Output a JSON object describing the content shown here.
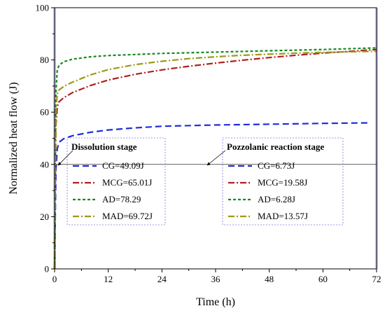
{
  "chart_data": {
    "type": "line",
    "xlabel": "Time (h)",
    "ylabel": "Normalized heat flow (J)",
    "xlim": [
      0,
      72
    ],
    "ylim": [
      0,
      100
    ],
    "xticks": [
      0,
      12,
      24,
      36,
      48,
      60,
      72
    ],
    "yticks": [
      0,
      20,
      40,
      60,
      80,
      100
    ],
    "grid": false,
    "reference_line": {
      "y": 40
    },
    "shaded_bands": [
      {
        "x_from": -0.3,
        "x_to": 0.3,
        "color": "#c8c8ff"
      },
      {
        "x_from": 71.7,
        "x_to": 72.3,
        "color": "#c8c8ff"
      }
    ],
    "series": [
      {
        "name": "CG",
        "color": "#1f2bdc",
        "dash": "long-dash",
        "x": [
          0,
          0.15,
          0.3,
          0.6,
          1,
          2,
          4,
          8,
          12,
          18,
          24,
          36,
          48,
          60,
          70
        ],
        "y": [
          0,
          20,
          38,
          46,
          48.5,
          49.8,
          51,
          52.3,
          53.2,
          54,
          54.6,
          55.1,
          55.4,
          55.7,
          55.9
        ]
      },
      {
        "name": "MCG",
        "color": "#b01f1f",
        "dash": "dash-dot",
        "x": [
          0,
          0.15,
          0.3,
          0.6,
          1,
          2,
          4,
          8,
          12,
          18,
          24,
          30,
          36,
          42,
          48,
          54,
          60,
          66,
          72
        ],
        "y": [
          0,
          30,
          55,
          62,
          64,
          65.5,
          67.5,
          70.2,
          72.3,
          74.5,
          76.2,
          77.6,
          78.8,
          79.9,
          80.9,
          81.8,
          82.6,
          83.3,
          84
        ]
      },
      {
        "name": "AD",
        "color": "#178a1f",
        "dash": "short-dash",
        "x": [
          0,
          0.15,
          0.3,
          0.6,
          1,
          2,
          4,
          8,
          12,
          18,
          24,
          36,
          48,
          60,
          72
        ],
        "y": [
          0,
          40,
          68,
          76,
          78,
          79.3,
          80.3,
          81.2,
          81.7,
          82.1,
          82.5,
          83,
          83.5,
          84,
          84.6
        ]
      },
      {
        "name": "MAD",
        "color": "#9a9a1a",
        "dash": "dash-dot",
        "x": [
          0,
          0.15,
          0.3,
          0.6,
          1,
          2,
          4,
          8,
          12,
          18,
          24,
          30,
          36,
          42,
          48,
          54,
          60,
          66,
          72
        ],
        "y": [
          0,
          35,
          60,
          67,
          68.5,
          69.8,
          71.5,
          74.3,
          76.3,
          78.2,
          79.5,
          80.5,
          81.2,
          81.8,
          82.2,
          82.6,
          82.9,
          83.1,
          83.3
        ]
      }
    ],
    "legends": [
      {
        "title": "Dissolution stage",
        "entries": [
          {
            "series": "CG",
            "label": "CG=49.09J"
          },
          {
            "series": "MCG",
            "label": "MCG=65.01J"
          },
          {
            "series": "AD",
            "label": "AD=78.29"
          },
          {
            "series": "MAD",
            "label": "MAD=69.72J"
          }
        ]
      },
      {
        "title": "Pozzolanic reaction stage",
        "entries": [
          {
            "series": "CG",
            "label": "CG=6.73J"
          },
          {
            "series": "MCG",
            "label": "MCG=19.58J"
          },
          {
            "series": "AD",
            "label": "AD=6.28J"
          },
          {
            "series": "MAD",
            "label": "MAD=13.57J"
          }
        ]
      }
    ]
  }
}
